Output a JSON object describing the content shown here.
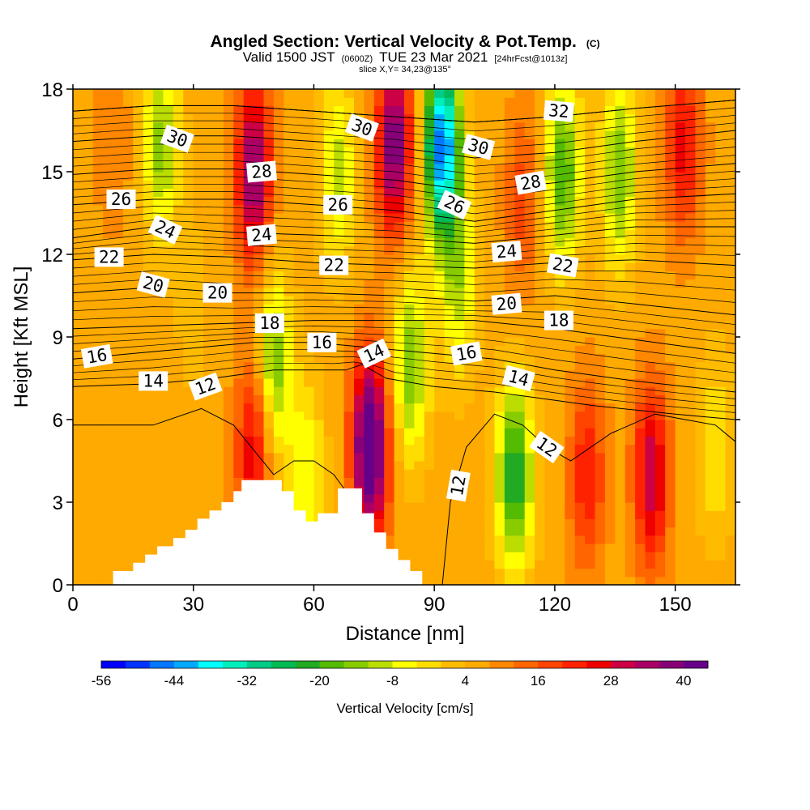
{
  "title": {
    "main": "Angled Section: Vertical Velocity & Pot.Temp.",
    "units": "(C)",
    "valid_prefix": "Valid 1500 JST",
    "valid_utc": "(0600Z)",
    "valid_date": "TUE 23 Mar 2021",
    "forecast": "[24hrFcst@1013z]",
    "slice": "slice X,Y= 34,23@135°"
  },
  "chart_data": {
    "type": "heatmap",
    "xlabel": "Distance [nm]",
    "ylabel": "Height [Kft MSL]",
    "xlim": [
      0,
      165
    ],
    "ylim": [
      0,
      18
    ],
    "x_ticks": [
      0,
      30,
      60,
      90,
      120,
      150
    ],
    "y_ticks": [
      0,
      3,
      6,
      9,
      12,
      15,
      18
    ],
    "colorbar": {
      "label": "Vertical Velocity [cm/s]",
      "tick_labels": [
        "-56",
        "-44",
        "-32",
        "-20",
        "-8",
        "4",
        "16",
        "28",
        "40"
      ],
      "min": -56,
      "max": 44,
      "step": 4,
      "colors": [
        "#0000ff",
        "#0033ff",
        "#0077ff",
        "#00aaff",
        "#00ffff",
        "#00eebb",
        "#00cc88",
        "#00bb55",
        "#22aa22",
        "#55bb00",
        "#88cc00",
        "#bbdd00",
        "#ffff00",
        "#ffdd00",
        "#ffbb00",
        "#ffaa00",
        "#ff8800",
        "#ff6600",
        "#ff4400",
        "#ff2200",
        "#ee0000",
        "#cc0044",
        "#aa0066",
        "#880077",
        "#660088"
      ]
    },
    "field_bands": [
      {
        "x": 10,
        "z": 16,
        "v": 6
      },
      {
        "x": 22,
        "z": 16,
        "v": -20
      },
      {
        "x": 30,
        "z": 10,
        "v": -4
      },
      {
        "x": 45,
        "z": 15,
        "v": 32
      },
      {
        "x": 45,
        "z": 5,
        "v": 22
      },
      {
        "x": 50,
        "z": 8,
        "v": -22
      },
      {
        "x": 58,
        "z": 4,
        "v": -14
      },
      {
        "x": 66,
        "z": 15,
        "v": -16
      },
      {
        "x": 74,
        "z": 5,
        "v": 44
      },
      {
        "x": 80,
        "z": 16,
        "v": 34
      },
      {
        "x": 84,
        "z": 8,
        "v": -22
      },
      {
        "x": 92,
        "z": 16,
        "v": -52
      },
      {
        "x": 96,
        "z": 11,
        "v": -16
      },
      {
        "x": 110,
        "z": 4,
        "v": -30
      },
      {
        "x": 112,
        "z": 14,
        "v": 12
      },
      {
        "x": 122,
        "z": 15,
        "v": -26
      },
      {
        "x": 128,
        "z": 4,
        "v": 18
      },
      {
        "x": 136,
        "z": 15,
        "v": -22
      },
      {
        "x": 144,
        "z": 4,
        "v": 26
      },
      {
        "x": 152,
        "z": 16,
        "v": 20
      },
      {
        "x": 160,
        "z": 5,
        "v": -10
      }
    ],
    "terrain": [
      [
        10,
        0.5
      ],
      [
        15,
        0.5
      ],
      [
        15,
        0.8
      ],
      [
        18,
        0.8
      ],
      [
        18,
        1.1
      ],
      [
        21,
        1.1
      ],
      [
        21,
        1.4
      ],
      [
        25,
        1.4
      ],
      [
        25,
        1.7
      ],
      [
        28,
        1.7
      ],
      [
        28,
        2.0
      ],
      [
        31,
        2.0
      ],
      [
        31,
        2.4
      ],
      [
        34,
        2.4
      ],
      [
        34,
        2.7
      ],
      [
        37,
        2.7
      ],
      [
        37,
        3.0
      ],
      [
        40,
        3.0
      ],
      [
        40,
        3.4
      ],
      [
        42,
        3.4
      ],
      [
        42,
        3.8
      ],
      [
        52,
        3.8
      ],
      [
        52,
        3.4
      ],
      [
        55,
        3.4
      ],
      [
        55,
        2.7
      ],
      [
        58,
        2.7
      ],
      [
        58,
        2.3
      ],
      [
        61,
        2.3
      ],
      [
        61,
        2.6
      ],
      [
        66,
        2.6
      ],
      [
        66,
        3.5
      ],
      [
        72,
        3.5
      ],
      [
        72,
        2.6
      ],
      [
        75,
        2.6
      ],
      [
        75,
        1.9
      ],
      [
        78,
        1.9
      ],
      [
        78,
        1.3
      ],
      [
        81,
        1.3
      ],
      [
        81,
        0.9
      ],
      [
        84,
        0.9
      ],
      [
        84,
        0.5
      ],
      [
        87,
        0.5
      ],
      [
        87,
        0
      ]
    ],
    "theta_contours": [
      {
        "label": "12",
        "pts": [
          [
            0,
            5.8
          ],
          [
            20,
            5.8
          ],
          [
            32,
            6.4
          ],
          [
            40,
            5.8
          ],
          [
            50,
            4.0
          ],
          [
            55,
            4.5
          ],
          [
            60,
            4.5
          ],
          [
            65,
            4.0
          ],
          [
            70,
            3.0
          ]
        ]
      },
      {
        "label": "12",
        "pts": [
          [
            92,
            0
          ],
          [
            94,
            3.0
          ],
          [
            98,
            5.0
          ],
          [
            105,
            6.2
          ],
          [
            112,
            5.8
          ],
          [
            118,
            5.0
          ],
          [
            124,
            4.5
          ],
          [
            134,
            5.5
          ],
          [
            145,
            6.2
          ],
          [
            160,
            5.8
          ],
          [
            165,
            5.2
          ]
        ]
      },
      {
        "label": "14",
        "pts": [
          [
            0,
            7.2
          ],
          [
            20,
            7.3
          ],
          [
            35,
            7.5
          ],
          [
            50,
            7.8
          ],
          [
            60,
            7.8
          ],
          [
            68,
            7.8
          ],
          [
            72,
            8.0
          ],
          [
            78,
            7.5
          ],
          [
            90,
            7.2
          ],
          [
            105,
            7.0
          ],
          [
            115,
            6.8
          ],
          [
            130,
            6.5
          ],
          [
            150,
            6.2
          ],
          [
            165,
            6.0
          ]
        ]
      },
      {
        "label": "16",
        "pts": [
          [
            0,
            8.2
          ],
          [
            15,
            8.4
          ],
          [
            30,
            8.6
          ],
          [
            45,
            8.8
          ],
          [
            60,
            8.8
          ],
          [
            75,
            8.6
          ],
          [
            90,
            8.4
          ],
          [
            105,
            8.2
          ],
          [
            120,
            7.8
          ],
          [
            140,
            7.4
          ],
          [
            165,
            7.0
          ]
        ]
      },
      {
        "label": "18",
        "pts": [
          [
            0,
            9.3
          ],
          [
            20,
            9.4
          ],
          [
            40,
            9.5
          ],
          [
            60,
            9.6
          ],
          [
            80,
            9.6
          ],
          [
            100,
            9.6
          ],
          [
            120,
            9.3
          ],
          [
            140,
            8.9
          ],
          [
            165,
            8.4
          ]
        ]
      },
      {
        "label": "20",
        "pts": [
          [
            0,
            10.6
          ],
          [
            20,
            10.8
          ],
          [
            40,
            10.6
          ],
          [
            60,
            10.6
          ],
          [
            80,
            10.5
          ],
          [
            100,
            10.3
          ],
          [
            120,
            10.5
          ],
          [
            140,
            10.2
          ],
          [
            165,
            9.8
          ]
        ]
      },
      {
        "label": "22",
        "pts": [
          [
            0,
            11.8
          ],
          [
            20,
            12.0
          ],
          [
            40,
            11.9
          ],
          [
            60,
            11.7
          ],
          [
            80,
            11.6
          ],
          [
            100,
            11.5
          ],
          [
            120,
            11.7
          ],
          [
            140,
            11.8
          ],
          [
            165,
            11.6
          ]
        ]
      },
      {
        "label": "24",
        "pts": [
          [
            0,
            12.6
          ],
          [
            20,
            13.0
          ],
          [
            40,
            12.8
          ],
          [
            60,
            12.7
          ],
          [
            80,
            12.6
          ],
          [
            100,
            12.4
          ],
          [
            120,
            12.7
          ],
          [
            140,
            13.0
          ],
          [
            165,
            13.0
          ]
        ]
      },
      {
        "label": "26",
        "pts": [
          [
            0,
            13.8
          ],
          [
            20,
            14.0
          ],
          [
            40,
            14.0
          ],
          [
            60,
            13.8
          ],
          [
            80,
            13.6
          ],
          [
            100,
            13.2
          ],
          [
            120,
            13.6
          ],
          [
            140,
            14.0
          ],
          [
            165,
            14.2
          ]
        ]
      },
      {
        "label": "28",
        "pts": [
          [
            0,
            14.9
          ],
          [
            20,
            15.1
          ],
          [
            40,
            15.1
          ],
          [
            60,
            14.9
          ],
          [
            80,
            14.7
          ],
          [
            100,
            14.3
          ],
          [
            120,
            14.6
          ],
          [
            140,
            15.0
          ],
          [
            165,
            15.3
          ]
        ]
      },
      {
        "label": "30",
        "pts": [
          [
            0,
            16.1
          ],
          [
            20,
            16.3
          ],
          [
            40,
            16.3
          ],
          [
            60,
            16.1
          ],
          [
            80,
            15.9
          ],
          [
            100,
            15.5
          ],
          [
            120,
            15.7
          ],
          [
            140,
            16.1
          ],
          [
            165,
            16.5
          ]
        ]
      },
      {
        "label": "32",
        "pts": [
          [
            0,
            17.2
          ],
          [
            20,
            17.4
          ],
          [
            40,
            17.4
          ],
          [
            60,
            17.2
          ],
          [
            80,
            17.0
          ],
          [
            100,
            16.8
          ],
          [
            120,
            17.0
          ],
          [
            140,
            17.3
          ],
          [
            165,
            17.6
          ]
        ]
      }
    ],
    "contour_labels": [
      {
        "text": "30",
        "x": 26,
        "z": 16.2,
        "rot": 20
      },
      {
        "text": "28",
        "x": 47,
        "z": 15.0,
        "rot": -5
      },
      {
        "text": "26",
        "x": 12,
        "z": 14.0,
        "rot": 0
      },
      {
        "text": "24",
        "x": 23,
        "z": 12.9,
        "rot": 25
      },
      {
        "text": "24",
        "x": 47,
        "z": 12.7,
        "rot": -5
      },
      {
        "text": "26",
        "x": 66,
        "z": 13.8,
        "rot": 0
      },
      {
        "text": "22",
        "x": 9,
        "z": 11.9,
        "rot": 0
      },
      {
        "text": "22",
        "x": 65,
        "z": 11.6,
        "rot": 0
      },
      {
        "text": "20",
        "x": 20,
        "z": 10.9,
        "rot": 15
      },
      {
        "text": "20",
        "x": 36,
        "z": 10.6,
        "rot": 0
      },
      {
        "text": "18",
        "x": 49,
        "z": 9.5,
        "rot": 0
      },
      {
        "text": "16",
        "x": 6,
        "z": 8.3,
        "rot": -10
      },
      {
        "text": "16",
        "x": 62,
        "z": 8.8,
        "rot": 0
      },
      {
        "text": "14",
        "x": 20,
        "z": 7.4,
        "rot": 0
      },
      {
        "text": "12",
        "x": 33,
        "z": 7.2,
        "rot": -20
      },
      {
        "text": "14",
        "x": 75,
        "z": 8.4,
        "rot": -25
      },
      {
        "text": "30",
        "x": 72,
        "z": 16.6,
        "rot": 20
      },
      {
        "text": "30",
        "x": 101,
        "z": 15.9,
        "rot": 15
      },
      {
        "text": "26",
        "x": 95,
        "z": 13.8,
        "rot": 25
      },
      {
        "text": "28",
        "x": 114,
        "z": 14.6,
        "rot": -10
      },
      {
        "text": "32",
        "x": 121,
        "z": 17.2,
        "rot": 5
      },
      {
        "text": "24",
        "x": 108,
        "z": 12.1,
        "rot": -5
      },
      {
        "text": "22",
        "x": 122,
        "z": 11.6,
        "rot": 10
      },
      {
        "text": "20",
        "x": 108,
        "z": 10.2,
        "rot": -5
      },
      {
        "text": "18",
        "x": 121,
        "z": 9.6,
        "rot": 0
      },
      {
        "text": "16",
        "x": 98,
        "z": 8.4,
        "rot": -10
      },
      {
        "text": "14",
        "x": 111,
        "z": 7.5,
        "rot": 15
      },
      {
        "text": "12",
        "x": 118,
        "z": 5.0,
        "rot": 35
      },
      {
        "text": "12",
        "x": 96,
        "z": 3.6,
        "rot": -80
      }
    ]
  }
}
